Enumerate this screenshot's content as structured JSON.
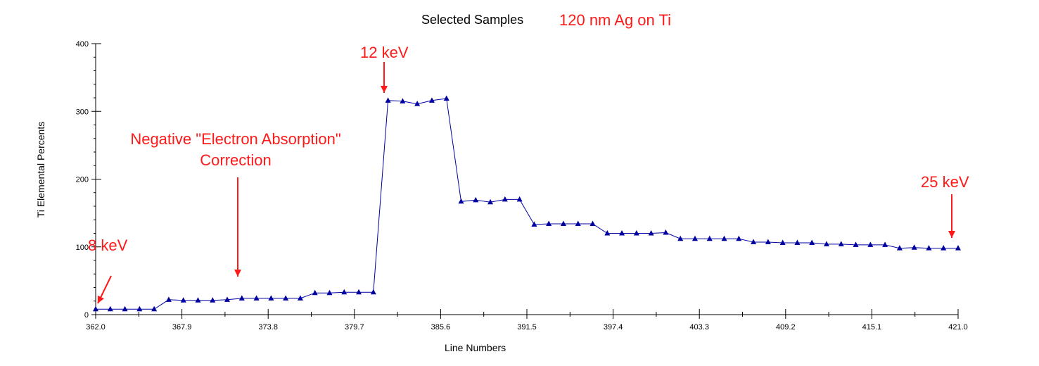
{
  "chart_data": {
    "type": "line",
    "title": "Selected Samples",
    "subtitle": "120 nm Ag on Ti",
    "xlabel": "Line Numbers",
    "ylabel": "Ti Elemental Percents",
    "xlim": [
      362.0,
      421.0
    ],
    "ylim": [
      0,
      400
    ],
    "x_ticks": [
      "362.0",
      "367.9",
      "373.8",
      "379.7",
      "385.6",
      "391.5",
      "397.4",
      "403.3",
      "409.2",
      "415.1",
      "421.0"
    ],
    "y_ticks": [
      "0",
      "100",
      "200",
      "300",
      "400"
    ],
    "series": [
      {
        "name": "Ti",
        "color": "#0000a0",
        "marker": "triangle",
        "x": [
          362,
          363,
          364,
          365,
          366,
          367,
          368,
          369,
          370,
          371,
          372,
          373,
          374,
          375,
          376,
          377,
          378,
          379,
          380,
          381,
          382,
          383,
          384,
          385,
          386,
          387,
          388,
          389,
          390,
          391,
          392,
          393,
          394,
          395,
          396,
          397,
          398,
          399,
          400,
          401,
          402,
          403,
          404,
          405,
          406,
          407,
          408,
          409,
          410,
          411,
          412,
          413,
          414,
          415,
          416,
          417,
          418,
          419,
          420,
          421
        ],
        "y": [
          8,
          8,
          8,
          8,
          8,
          22,
          21,
          21,
          21,
          22,
          24,
          24,
          24,
          24,
          24,
          32,
          32,
          33,
          33,
          33,
          316,
          315,
          311,
          316,
          319,
          167,
          169,
          166,
          170,
          170,
          133,
          134,
          134,
          134,
          134,
          120,
          120,
          120,
          120,
          121,
          112,
          112,
          112,
          112,
          112,
          107,
          107,
          106,
          106,
          106,
          104,
          104,
          103,
          103,
          103,
          98,
          99,
          98,
          98,
          98
        ]
      }
    ],
    "annotations": [
      {
        "text": "8 keV",
        "x": 362,
        "y": 8
      },
      {
        "text": "Negative \"Electron Absorption\"",
        "text2": "Correction",
        "x": 372,
        "y": 24
      },
      {
        "text": "12 keV",
        "x": 382,
        "y": 316
      },
      {
        "text": "25 keV",
        "x": 421,
        "y": 98
      }
    ],
    "grid": false
  }
}
